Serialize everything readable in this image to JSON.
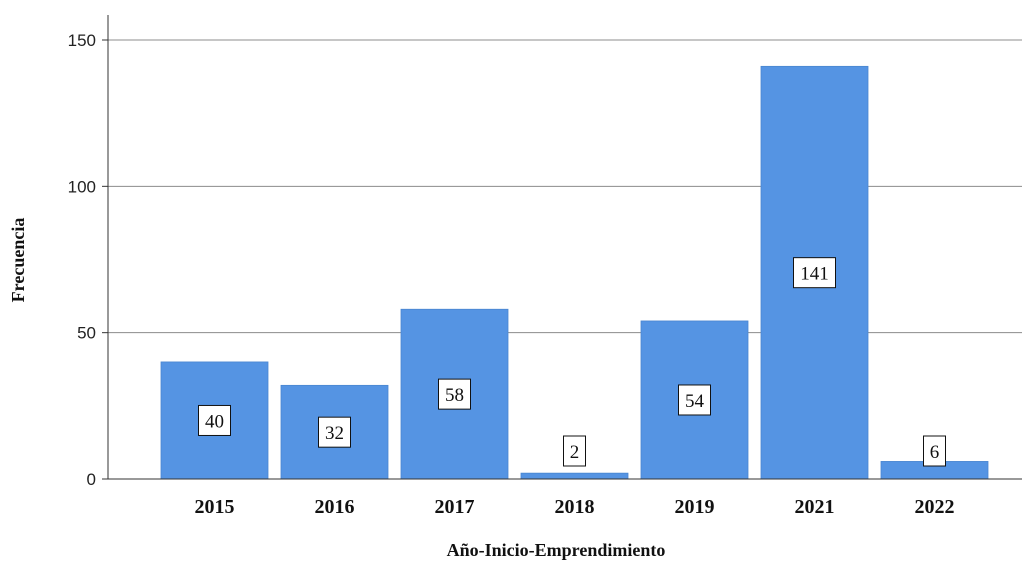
{
  "chart_data": {
    "type": "bar",
    "categories": [
      "2015",
      "2016",
      "2017",
      "2018",
      "2019",
      "2021",
      "2022"
    ],
    "values": [
      40,
      32,
      58,
      2,
      54,
      141,
      6
    ],
    "xlabel": "Año-Inicio-Emprendimiento",
    "ylabel": "Frecuencia",
    "ylim": [
      0,
      150
    ],
    "yticks": [
      0,
      50,
      100,
      150
    ],
    "grid": true,
    "bar_color": "#5594e3",
    "bar_stroke": "#4a86d0",
    "grid_color": "#8c8c8c",
    "data_labels": true,
    "legend": "none"
  }
}
